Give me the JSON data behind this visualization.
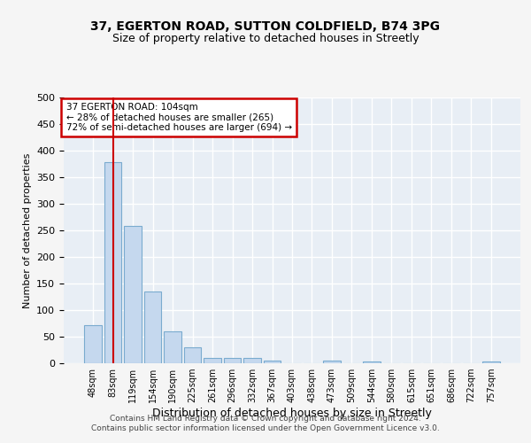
{
  "title1": "37, EGERTON ROAD, SUTTON COLDFIELD, B74 3PG",
  "title2": "Size of property relative to detached houses in Streetly",
  "xlabel": "Distribution of detached houses by size in Streetly",
  "ylabel": "Number of detached properties",
  "footnote": "Contains HM Land Registry data © Crown copyright and database right 2024.\nContains public sector information licensed under the Open Government Licence v3.0.",
  "categories": [
    "48sqm",
    "83sqm",
    "119sqm",
    "154sqm",
    "190sqm",
    "225sqm",
    "261sqm",
    "296sqm",
    "332sqm",
    "367sqm",
    "403sqm",
    "438sqm",
    "473sqm",
    "509sqm",
    "544sqm",
    "580sqm",
    "615sqm",
    "651sqm",
    "686sqm",
    "722sqm",
    "757sqm"
  ],
  "values": [
    72,
    378,
    258,
    135,
    60,
    30,
    10,
    10,
    10,
    5,
    0,
    0,
    5,
    0,
    4,
    0,
    0,
    0,
    0,
    0,
    4
  ],
  "bar_color": "#c5d8ee",
  "bar_edge_color": "#7aabcf",
  "vline_x": 1,
  "vline_color": "#cc0000",
  "annotation_text_line1": "37 EGERTON ROAD: 104sqm",
  "annotation_text_line2": "← 28% of detached houses are smaller (265)",
  "annotation_text_line3": "72% of semi-detached houses are larger (694) →",
  "annotation_box_color": "#cc0000",
  "ylim": [
    0,
    500
  ],
  "yticks": [
    0,
    50,
    100,
    150,
    200,
    250,
    300,
    350,
    400,
    450,
    500
  ],
  "background_color": "#e8eef5",
  "fig_background_color": "#f5f5f5",
  "grid_color": "#ffffff",
  "title1_fontsize": 10,
  "title2_fontsize": 9,
  "xlabel_fontsize": 9,
  "ylabel_fontsize": 8
}
